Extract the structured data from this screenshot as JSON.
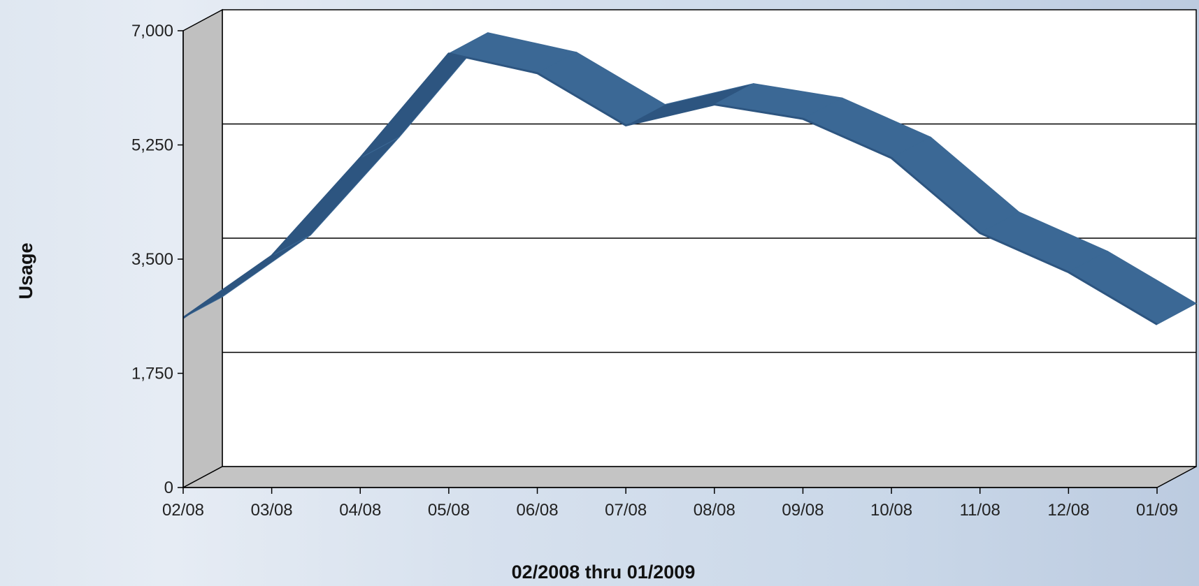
{
  "chart_data": {
    "type": "line",
    "style": "3d-ribbon",
    "ylabel": "Usage",
    "xlabel": "02/2008 thru 01/2009",
    "ylim": [
      0,
      7000
    ],
    "yticks": [
      0,
      1750,
      3500,
      5250,
      7000
    ],
    "ytick_labels": [
      "0",
      "1,750",
      "3,500",
      "5,250",
      "7,000"
    ],
    "categories": [
      "02/08",
      "03/08",
      "04/08",
      "05/08",
      "06/08",
      "07/08",
      "08/08",
      "09/08",
      "10/08",
      "11/08",
      "12/08",
      "01/09"
    ],
    "series": [
      {
        "color": "#35618e",
        "values": [
          2600,
          3550,
          5050,
          6650,
          6350,
          5550,
          5870,
          5650,
          5050,
          3900,
          3300,
          2500
        ]
      }
    ],
    "grid": true,
    "legend": "none",
    "colors": {
      "wall": "#c0c0c0",
      "floor": "#c4c4c4",
      "plot_background": "#ffffff",
      "ribbon_top": "#3b6895",
      "ribbon_side": "#2d5580"
    }
  }
}
